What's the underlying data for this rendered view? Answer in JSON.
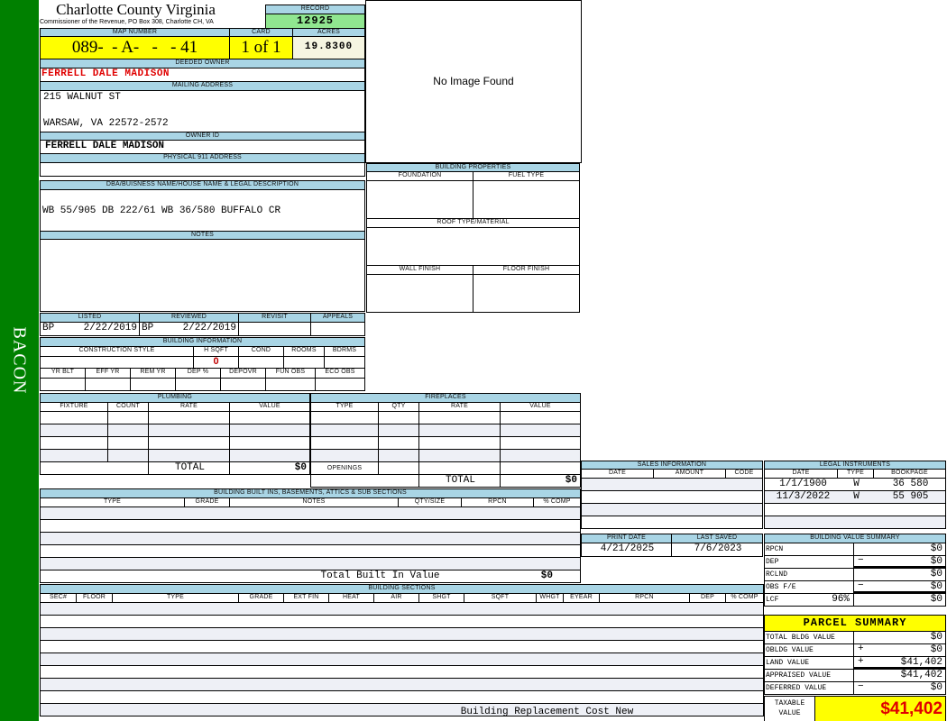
{
  "sidebar": {
    "label": "BACON"
  },
  "header": {
    "title": "Charlotte County Virginia",
    "subtitle": "Commissioner of the Revenue, PO Box 308, Charlotte CH, VA"
  },
  "record": {
    "label": "RECORD",
    "value": "12925"
  },
  "map": {
    "label": "MAP NUMBER",
    "value": "089-  - A-   -   - 41"
  },
  "card": {
    "label": "CARD",
    "value": "1 of 1"
  },
  "acres": {
    "label": "ACRES",
    "value": "19.8300"
  },
  "deeded_owner": {
    "label": "DEEDED OWNER",
    "value": "FERRELL DALE MADISON"
  },
  "mailing_address": {
    "label": "MAILING ADDRESS",
    "line1": "215 WALNUT ST",
    "line2": "WARSAW, VA 22572-2572"
  },
  "owner_id": {
    "label": "OWNER ID",
    "value": "FERRELL DALE MADISON"
  },
  "physical_address": {
    "label": "PHYSICAL 911 ADDRESS",
    "value": ""
  },
  "image": {
    "text": "No Image Found"
  },
  "building_properties": {
    "title": "BUILDING PROPERTIES",
    "row1": [
      "FOUNDATION",
      "FUEL TYPE"
    ],
    "roof": "ROOF TYPE/MATERIAL",
    "row3": [
      "WALL FINISH",
      "FLOOR FINISH"
    ]
  },
  "legal_description": {
    "label": "DBA/BUISNESS NAME/HOUSE NAME & LEGAL DESCRIPTION",
    "value": "WB 55/905 DB 222/61 WB 36/580 BUFFALO CR"
  },
  "notes": {
    "label": "NOTES"
  },
  "review": {
    "headers": [
      "LISTED",
      "REVIEWED",
      "REVISIT",
      "APPEALS"
    ],
    "listed_by": "BP",
    "listed_date": "2/22/2019",
    "reviewed_by": "BP",
    "reviewed_date": "2/22/2019"
  },
  "building_info": {
    "title": "BUILDING INFORMATION",
    "row1": [
      "CONSTRUCTION STYLE",
      "H SQFT",
      "COND",
      "ROOMS",
      "BDRMS"
    ],
    "hsqft_value": "0",
    "row2": [
      "YR BLT",
      "EFF YR",
      "REM YR",
      "DEP %",
      "DEPOVR",
      "FUN OBS",
      "ECO OBS"
    ]
  },
  "plumbing": {
    "title": "PLUMBING",
    "columns": [
      "FIXTURE",
      "COUNT",
      "RATE",
      "VALUE"
    ],
    "total_label": "TOTAL",
    "total_value": "$0"
  },
  "fireplaces": {
    "title": "FIREPLACES",
    "columns": [
      "TYPE",
      "QTY",
      "RATE",
      "VALUE"
    ],
    "openings_label": "OPENINGS",
    "total_label": "TOTAL",
    "total_value": "$0"
  },
  "built_ins": {
    "title": "BUILDING BUILT INS, BASEMENTS, ATTICS & SUB SECTIONS",
    "columns": [
      "TYPE",
      "GRADE",
      "NOTES",
      "QTY/SIZE",
      "RPCN",
      "% COMP"
    ],
    "total_label": "Total Built In Value",
    "total_value": "$0"
  },
  "building_sections": {
    "title": "BUILDING SECTIONS",
    "columns": [
      "SEC#",
      "FLOOR",
      "TYPE",
      "GRADE",
      "EXT FIN",
      "HEAT",
      "AIR",
      "SHGT",
      "SQFT",
      "WHGT",
      "EYEAR",
      "RPCN",
      "DEP",
      "% COMP"
    ],
    "footer_label": "Building Replacement Cost New"
  },
  "sales": {
    "title": "SALES INFORMATION",
    "columns": [
      "DATE",
      "AMOUNT",
      "CODE"
    ]
  },
  "legal_instruments": {
    "title": "LEGAL INSTRUMENTS",
    "columns": [
      "DATE",
      "TYPE",
      "BOOKPAGE"
    ],
    "rows": [
      [
        "1/1/1900",
        "W",
        "36 580"
      ],
      [
        "11/3/2022",
        "W",
        "55 905"
      ]
    ]
  },
  "dates": {
    "labels": [
      "PRINT DATE",
      "LAST SAVED"
    ],
    "values": [
      "4/21/2025",
      "7/6/2023"
    ]
  },
  "building_value_summary": {
    "title": "BUILDING VALUE SUMMARY",
    "lcf_pct": "96%",
    "rows": [
      {
        "label": "RPCN",
        "op": "",
        "value": "$0"
      },
      {
        "label": "DEP",
        "op": "−",
        "value": "$0"
      },
      {
        "label": "RCLND",
        "op": "",
        "value": "$0"
      },
      {
        "label": "OBS F/E",
        "op": "−",
        "value": "$0"
      },
      {
        "label": "LCF",
        "op": "",
        "value": "$0"
      }
    ]
  },
  "parcel_summary": {
    "title": "PARCEL SUMMARY",
    "rows": [
      {
        "label": "TOTAL BLDG VALUE",
        "op": "",
        "value": "$0"
      },
      {
        "label": "OBLDG VALUE",
        "op": "+",
        "value": "$0"
      },
      {
        "label": "LAND VALUE",
        "op": "+",
        "value": "$41,402"
      },
      {
        "label": "APPRAISED VALUE",
        "op": "",
        "value": "$41,402"
      },
      {
        "label": "DEFERRED VALUE",
        "op": "−",
        "value": "$0"
      }
    ],
    "taxable_label": "TAXABLE VALUE",
    "taxable_value": "$41,402"
  },
  "colors": {
    "sidebar": "#008000",
    "header": "#a9d5e5",
    "highlight": "#ffff00",
    "record": "#90e690",
    "owner_text": "#e00000"
  }
}
